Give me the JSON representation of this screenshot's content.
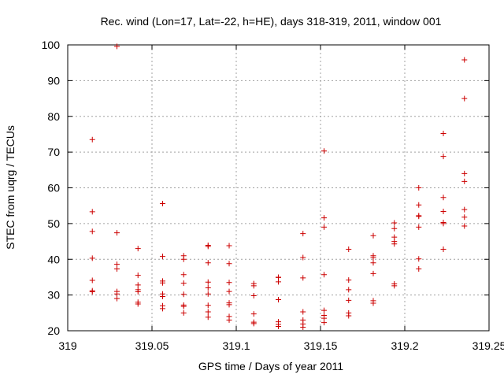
{
  "chart_data": {
    "type": "scatter",
    "title": "Rec. wind (Lon=17, Lat=-22, h=HE), days 318-319, 2011, window 001",
    "xlabel": "GPS time / Days of year 2011",
    "ylabel": "STEC from uqrg / TECUs",
    "xlim": [
      319,
      319.25
    ],
    "ylim": [
      20,
      100
    ],
    "x_ticks": [
      319,
      319.05,
      319.1,
      319.15,
      319.2,
      319.25
    ],
    "x_tick_labels": [
      "319",
      "319.05",
      "319.1",
      "319.15",
      "319.2",
      "319.25"
    ],
    "y_ticks": [
      20,
      30,
      40,
      50,
      60,
      70,
      80,
      90,
      100
    ],
    "y_tick_labels": [
      "20",
      "30",
      "40",
      "50",
      "60",
      "70",
      "80",
      "90",
      "100"
    ],
    "grid": true,
    "marker": "plus",
    "color": "#cc0000",
    "series": [
      {
        "points": [
          [
            319.0146,
            73.5
          ],
          [
            319.0146,
            53.3
          ],
          [
            319.0146,
            47.8
          ],
          [
            319.0146,
            40.3
          ],
          [
            319.0146,
            34.1
          ],
          [
            319.0146,
            31.2
          ],
          [
            319.0146,
            30.9
          ],
          [
            319.0292,
            99.6
          ],
          [
            319.0292,
            47.4
          ],
          [
            319.0292,
            38.6
          ],
          [
            319.0292,
            37.3
          ],
          [
            319.0292,
            31.0
          ],
          [
            319.0292,
            30.3
          ],
          [
            319.0292,
            29.0
          ],
          [
            319.0417,
            43.0
          ],
          [
            319.0417,
            35.5
          ],
          [
            319.0417,
            32.8
          ],
          [
            319.0417,
            31.5
          ],
          [
            319.0417,
            30.9
          ],
          [
            319.0417,
            28.0
          ],
          [
            319.0417,
            27.5
          ],
          [
            319.0563,
            55.6
          ],
          [
            319.0563,
            40.8
          ],
          [
            319.0563,
            33.9
          ],
          [
            319.0563,
            33.4
          ],
          [
            319.0563,
            30.3
          ],
          [
            319.0563,
            29.6
          ],
          [
            319.0563,
            27.0
          ],
          [
            319.0563,
            26.2
          ],
          [
            319.0688,
            41.0
          ],
          [
            319.0688,
            40.0
          ],
          [
            319.0688,
            35.7
          ],
          [
            319.0688,
            33.3
          ],
          [
            319.0688,
            30.2
          ],
          [
            319.0688,
            27.2
          ],
          [
            319.0688,
            26.8
          ],
          [
            319.0688,
            25.0
          ],
          [
            319.0833,
            43.9
          ],
          [
            319.0833,
            43.6
          ],
          [
            319.0833,
            39.0
          ],
          [
            319.0833,
            33.6
          ],
          [
            319.0833,
            32.0
          ],
          [
            319.0833,
            30.3
          ],
          [
            319.0833,
            27.1
          ],
          [
            319.0833,
            25.3
          ],
          [
            319.0833,
            23.8
          ],
          [
            319.0958,
            43.8
          ],
          [
            319.0958,
            38.8
          ],
          [
            319.0958,
            33.5
          ],
          [
            319.0958,
            31.0
          ],
          [
            319.0958,
            27.8
          ],
          [
            319.0958,
            27.3
          ],
          [
            319.0958,
            24.0
          ],
          [
            319.0958,
            23.0
          ],
          [
            319.1104,
            33.2
          ],
          [
            319.1104,
            32.6
          ],
          [
            319.1104,
            29.8
          ],
          [
            319.1104,
            24.7
          ],
          [
            319.1104,
            22.4
          ],
          [
            319.1104,
            22.0
          ],
          [
            319.125,
            35.0
          ],
          [
            319.125,
            34.9
          ],
          [
            319.125,
            33.7
          ],
          [
            319.125,
            28.7
          ],
          [
            319.125,
            22.5
          ],
          [
            319.125,
            21.8
          ],
          [
            319.125,
            21.2
          ],
          [
            319.1396,
            47.2
          ],
          [
            319.1396,
            40.5
          ],
          [
            319.1396,
            34.8
          ],
          [
            319.1396,
            25.3
          ],
          [
            319.1396,
            23.0
          ],
          [
            319.1396,
            21.9
          ],
          [
            319.1396,
            21.0
          ],
          [
            319.1521,
            70.3
          ],
          [
            319.1521,
            51.6
          ],
          [
            319.1521,
            49.0
          ],
          [
            319.1521,
            35.7
          ],
          [
            319.1521,
            25.7
          ],
          [
            319.1521,
            24.3
          ],
          [
            319.1521,
            23.5
          ],
          [
            319.1521,
            22.3
          ],
          [
            319.1667,
            42.8
          ],
          [
            319.1667,
            34.2
          ],
          [
            319.1667,
            31.5
          ],
          [
            319.1667,
            28.5
          ],
          [
            319.1667,
            25.0
          ],
          [
            319.1667,
            24.2
          ],
          [
            319.1813,
            46.6
          ],
          [
            319.1813,
            41.0
          ],
          [
            319.1813,
            40.5
          ],
          [
            319.1813,
            39.0
          ],
          [
            319.1813,
            36.0
          ],
          [
            319.1813,
            28.4
          ],
          [
            319.1813,
            27.7
          ],
          [
            319.1938,
            50.2
          ],
          [
            319.1938,
            48.6
          ],
          [
            319.1938,
            46.2
          ],
          [
            319.1938,
            45.0
          ],
          [
            319.1938,
            44.3
          ],
          [
            319.1938,
            33.1
          ],
          [
            319.1938,
            32.6
          ],
          [
            319.2083,
            60.0
          ],
          [
            319.2083,
            55.2
          ],
          [
            319.2083,
            52.2
          ],
          [
            319.2083,
            52.0
          ],
          [
            319.2083,
            49.0
          ],
          [
            319.2083,
            40.1
          ],
          [
            319.2083,
            37.3
          ],
          [
            319.2229,
            75.2
          ],
          [
            319.2229,
            68.8
          ],
          [
            319.2229,
            57.3
          ],
          [
            319.2229,
            53.4
          ],
          [
            319.2229,
            50.3
          ],
          [
            319.2229,
            50.0
          ],
          [
            319.2229,
            42.8
          ],
          [
            319.2354,
            95.8
          ],
          [
            319.2354,
            85.0
          ],
          [
            319.2354,
            64.0
          ],
          [
            319.2354,
            61.8
          ],
          [
            319.2354,
            53.9
          ],
          [
            319.2354,
            51.8
          ],
          [
            319.2354,
            49.3
          ]
        ]
      }
    ]
  }
}
